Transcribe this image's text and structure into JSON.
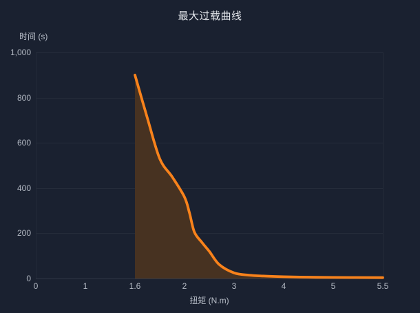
{
  "chart_data": {
    "type": "area",
    "title": "最大过载曲线",
    "xlabel": "扭矩 (N.m)",
    "ylabel": "时间 (s)",
    "x_categories": [
      "0",
      "1",
      "1.6",
      "2",
      "3",
      "4",
      "5",
      "5.5"
    ],
    "y_tick_labels": [
      "0",
      "200",
      "400",
      "600",
      "800",
      "1,000"
    ],
    "ylim": [
      0,
      1000
    ],
    "x_axis_type": "category-equal-spacing",
    "grid": "horizontal-only",
    "legend": "none",
    "series": [
      {
        "x": [
          1.6,
          1.7,
          1.8,
          1.9,
          2.0,
          2.1,
          2.2,
          2.35,
          2.5,
          2.7,
          3.0,
          3.3,
          3.6,
          4.0,
          4.5,
          5.0,
          5.5
        ],
        "values": [
          900,
          710,
          530,
          450,
          360,
          290,
          205,
          160,
          120,
          62,
          25,
          15,
          11,
          8,
          6,
          5,
          4
        ],
        "line_color": "#f8821b",
        "area_color": "#473221"
      }
    ]
  },
  "colors": {
    "background": "#1a2130",
    "grid_line": "#252c3a",
    "axis_line": "#323948",
    "plot_border": "#242b39",
    "tick_text": "#b3b9c3",
    "axis_name_text": "#b9bfc9",
    "title_text": "#e4e7ec",
    "line": "#f8821b",
    "area": "#473221"
  }
}
